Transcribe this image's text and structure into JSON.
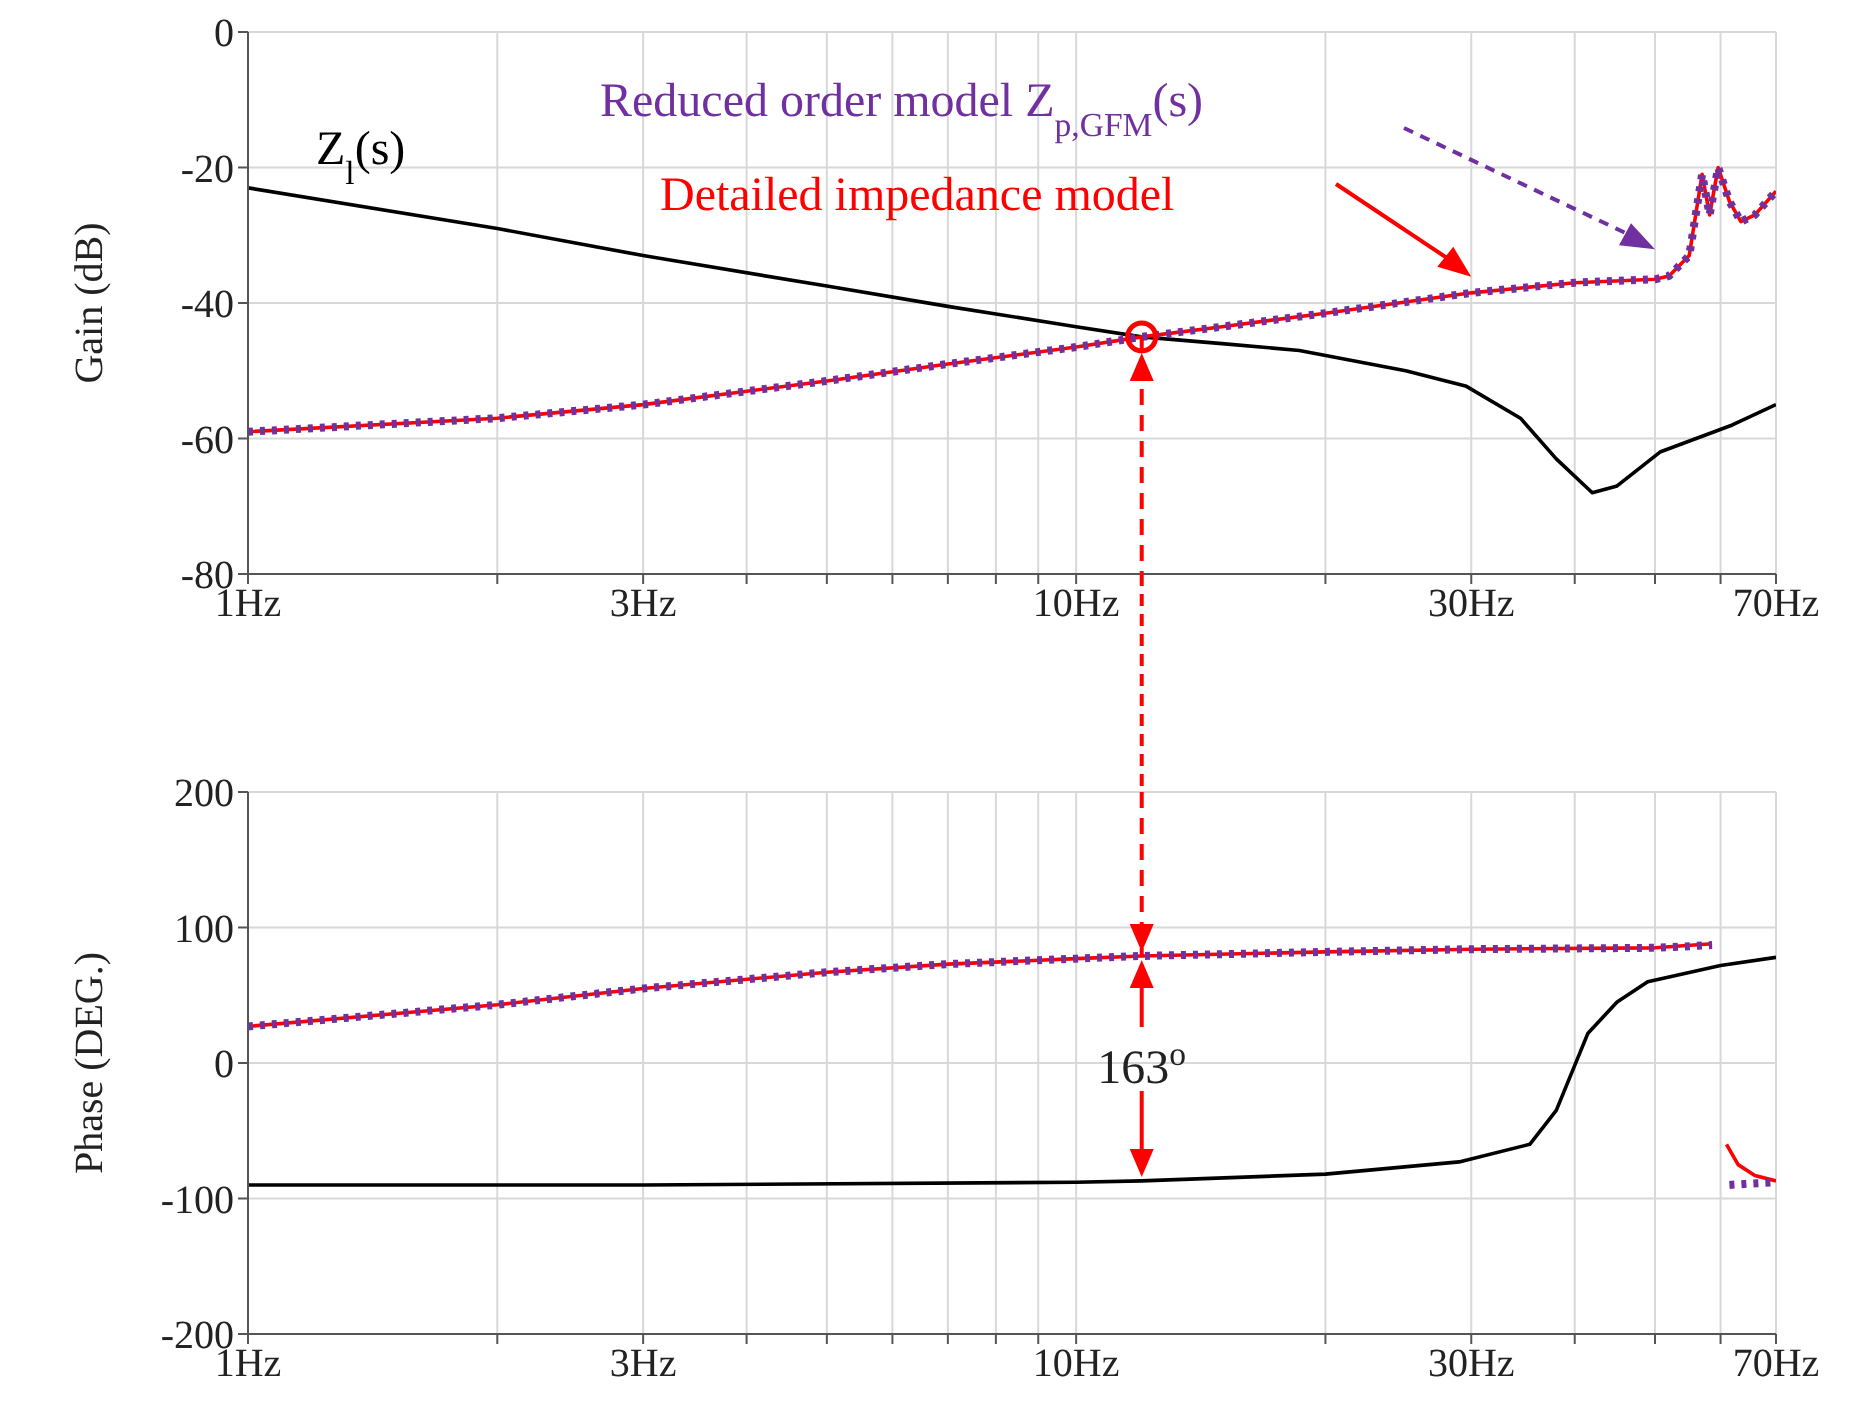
{
  "chart_data": [
    {
      "type": "line",
      "ylabel": "Gain (dB)",
      "log": "x",
      "grid": true,
      "legend": false,
      "marker": "none",
      "xlim": [
        1,
        70
      ],
      "xticks": [
        {
          "value": 1,
          "label": "1Hz"
        },
        {
          "value": 2,
          "label": null
        },
        {
          "value": 3,
          "label": "3Hz"
        },
        {
          "value": 4,
          "label": null
        },
        {
          "value": 5,
          "label": null
        },
        {
          "value": 6,
          "label": null
        },
        {
          "value": 7,
          "label": null
        },
        {
          "value": 8,
          "label": null
        },
        {
          "value": 9,
          "label": null
        },
        {
          "value": 10,
          "label": "10Hz"
        },
        {
          "value": 20,
          "label": null
        },
        {
          "value": 30,
          "label": "30Hz"
        },
        {
          "value": 40,
          "label": null
        },
        {
          "value": 50,
          "label": null
        },
        {
          "value": 60,
          "label": null
        },
        {
          "value": 70,
          "label": "70Hz"
        }
      ],
      "ylim": [
        -80,
        0
      ],
      "yticks": [
        -80,
        -60,
        -40,
        -20,
        0
      ],
      "ref_lines": [
        {
          "axis": "x",
          "value": 12,
          "color": "#ff0000",
          "line_style": "dashed"
        }
      ],
      "series": [
        {
          "name": "Z$_{l}$(s)",
          "color": "#000000",
          "line_style": "solid",
          "x": [
            1,
            2,
            3,
            5,
            7,
            10,
            12,
            15,
            18.6,
            25,
            29.6,
            34.4,
            38,
            42,
            45,
            50.7,
            62,
            70
          ],
          "values": [
            -23,
            -29,
            -33,
            -37.5,
            -40.5,
            -43.5,
            -45,
            -46,
            -47,
            -50,
            -52.3,
            -57,
            -63,
            -68,
            -67,
            -62,
            -58,
            -55
          ]
        },
        {
          "name": "Detailed impedance model",
          "color": "#ff0000",
          "line_style": "solid",
          "x": [
            1,
            2,
            3,
            5,
            7,
            10,
            12,
            15,
            20,
            30,
            40,
            50,
            52,
            55,
            57,
            58.2,
            59.6,
            61.5,
            63.5,
            66,
            70
          ],
          "values": [
            -59,
            -57,
            -55,
            -51.5,
            -49,
            -46.5,
            -45,
            -43.5,
            -41.5,
            -38.5,
            -37,
            -36.5,
            -36,
            -33,
            -21,
            -27,
            -20,
            -25,
            -28,
            -27,
            -23.5
          ]
        },
        {
          "name": "Reduced order model Z$_{p,GFM}$(s)",
          "color": "#7030a0",
          "line_style": "dotted",
          "x": [
            1,
            2,
            3,
            5,
            7,
            10,
            12,
            15,
            20,
            30,
            40,
            50,
            52,
            55,
            57,
            58.2,
            59.6,
            61.5,
            63.5,
            66,
            70
          ],
          "values": [
            -59,
            -57,
            -55,
            -51.5,
            -49,
            -46.5,
            -45,
            -43.5,
            -41.5,
            -38.5,
            -37,
            -36.5,
            -36,
            -33,
            -21,
            -27,
            -20,
            -25,
            -28,
            -27,
            -23.5
          ]
        }
      ]
    },
    {
      "type": "line",
      "ylabel": "Phase (DEG.)",
      "log": "x",
      "grid": true,
      "legend": false,
      "marker": "none",
      "xlim": [
        1,
        70
      ],
      "xticks": [
        {
          "value": 1,
          "label": "1Hz"
        },
        {
          "value": 2,
          "label": null
        },
        {
          "value": 3,
          "label": "3Hz"
        },
        {
          "value": 4,
          "label": null
        },
        {
          "value": 5,
          "label": null
        },
        {
          "value": 6,
          "label": null
        },
        {
          "value": 7,
          "label": null
        },
        {
          "value": 8,
          "label": null
        },
        {
          "value": 9,
          "label": null
        },
        {
          "value": 10,
          "label": "10Hz"
        },
        {
          "value": 20,
          "label": null
        },
        {
          "value": 30,
          "label": "30Hz"
        },
        {
          "value": 40,
          "label": null
        },
        {
          "value": 50,
          "label": null
        },
        {
          "value": 60,
          "label": null
        },
        {
          "value": 70,
          "label": "70Hz"
        }
      ],
      "ylim": [
        -200,
        200
      ],
      "yticks": [
        -200,
        -100,
        0,
        100,
        200
      ],
      "annotations": [
        "163$^{o}$"
      ],
      "ref_lines": [
        {
          "axis": "x",
          "value": 12,
          "color": "#ff0000",
          "line_style": "dashed"
        }
      ],
      "series": [
        {
          "color": "#000000",
          "line_style": "solid",
          "x": [
            1,
            3,
            10,
            12,
            20,
            29,
            35.3,
            38,
            41.5,
            45,
            49,
            60,
            70
          ],
          "values": [
            -90,
            -90,
            -88,
            -87,
            -82,
            -73,
            -60,
            -35,
            22,
            45,
            60,
            72,
            78
          ]
        },
        {
          "color": "#ff0000",
          "line_style": "solid",
          "x": [
            1,
            2,
            3,
            5,
            7,
            10,
            12,
            20,
            30,
            50,
            58.6,
            60,
            61,
            63,
            66,
            70
          ],
          "values": [
            27,
            43,
            55,
            67,
            73,
            77,
            79,
            82,
            84,
            85,
            88,
            null,
            -60,
            -75,
            -83,
            -87
          ]
        },
        {
          "color": "#7030a0",
          "line_style": "dotted",
          "x": [
            1,
            2,
            3,
            5,
            7,
            10,
            12,
            20,
            30,
            50,
            58.6,
            60,
            61.5,
            65,
            70
          ],
          "values": [
            27,
            43,
            55,
            67,
            73,
            77,
            79,
            82,
            84,
            85,
            87,
            null,
            -90,
            -89,
            -88
          ]
        }
      ]
    }
  ]
}
